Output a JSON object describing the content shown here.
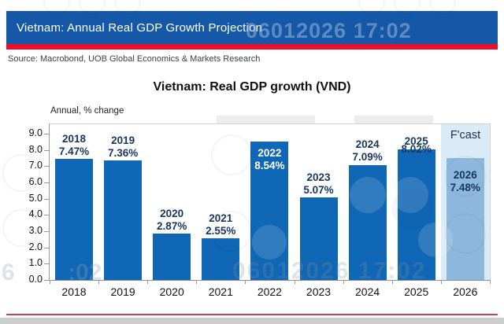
{
  "header": {
    "title": "Vietnam: Annual Real GDP Growth Projection"
  },
  "source_line": "Source: Macrobond, UOB Global Economics & Markets Research",
  "watermarks": {
    "timestamp": "06012026 17:02",
    "fragment_left": "6",
    "fragment_mid": ":02"
  },
  "chart_data": {
    "type": "bar",
    "title": "Vietnam: Real GDP growth (VND)",
    "axis_note": "Annual, % change",
    "categories": [
      "2018",
      "2019",
      "2020",
      "2021",
      "2022",
      "2023",
      "2024",
      "2025",
      "2026"
    ],
    "values": [
      7.47,
      7.36,
      2.87,
      2.55,
      8.54,
      5.07,
      7.09,
      8.02,
      7.48
    ],
    "value_labels": [
      "7.47%",
      "7.36%",
      "2.87%",
      "2.55%",
      "8.54%",
      "5.07%",
      "7.09%",
      "8.02%",
      "7.48%"
    ],
    "label_styles": [
      "above",
      "above",
      "above",
      "above",
      "inside-light",
      "above",
      "above",
      "straddle",
      "inside-dark"
    ],
    "forecast_index": 8,
    "forecast_label": "F'cast",
    "ylim": [
      0,
      9
    ],
    "yticks": [
      "9.0",
      "8.0",
      "7.0",
      "6.0",
      "5.0",
      "4.0",
      "3.0",
      "2.0",
      "1.0",
      "0.0"
    ],
    "grid": false,
    "legend_position": "none"
  },
  "colors": {
    "header_bg": "#1558A7",
    "red_stripe": "#E8112D",
    "bar": "#1067B5",
    "bar_forecast": "#8DB8DE",
    "forecast_band": "#DAEAF6",
    "label_navy": "#17365F",
    "label_light": "#FFFFFF",
    "bottom_line": "#BF4458",
    "bottom_strip": "#CDCDCD"
  }
}
